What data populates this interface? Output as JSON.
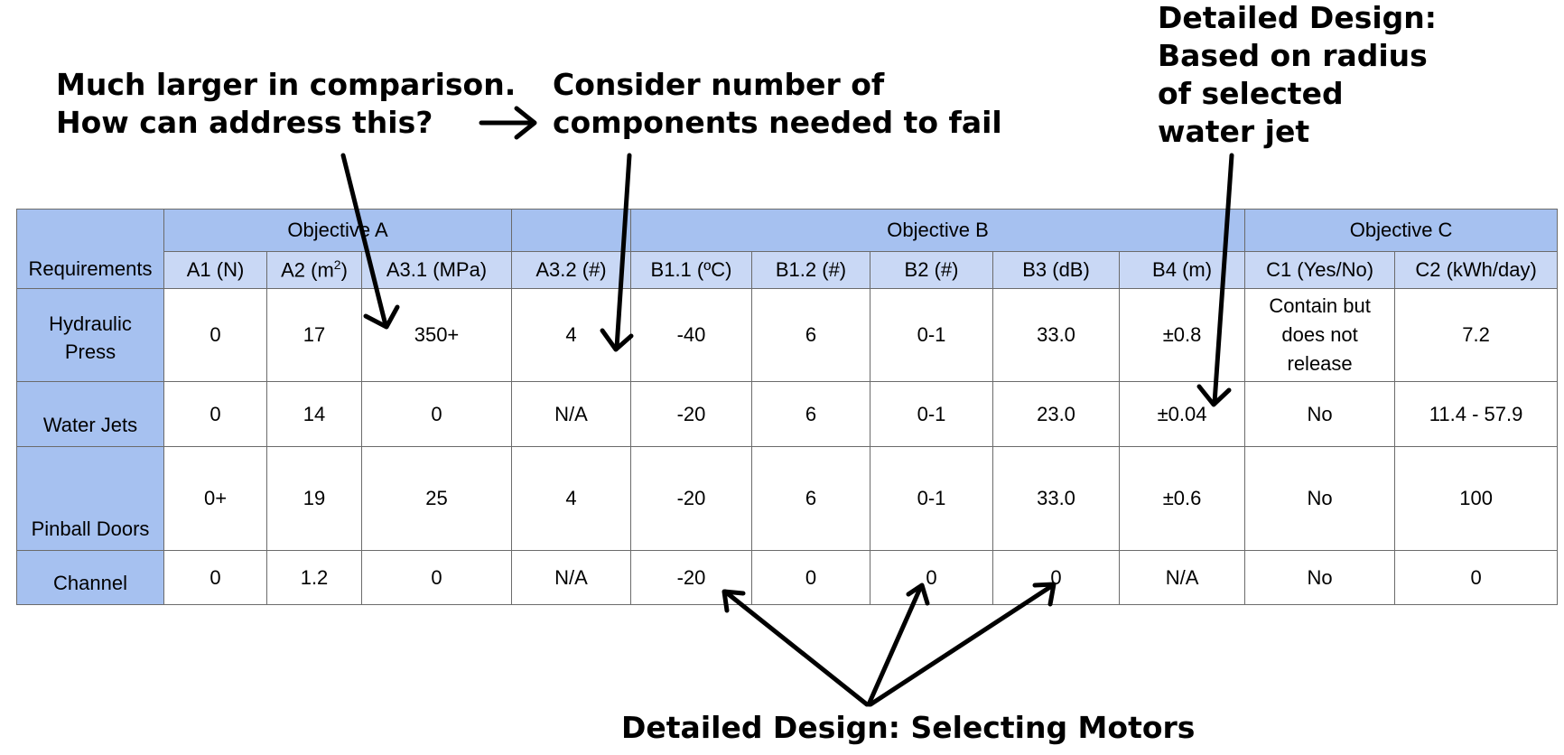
{
  "annotations": {
    "top_left": [
      "Much larger in comparison.",
      "How can address this?"
    ],
    "top_middle": [
      "Consider number of",
      "components needed to fail"
    ],
    "top_right": [
      "Detailed Design:",
      "Based on radius",
      "of selected",
      "water jet"
    ],
    "bottom": "Detailed Design: Selecting Motors"
  },
  "table": {
    "objectives": [
      "Objective A",
      "Objective B",
      "Objective C"
    ],
    "requirements_label": "Requirements",
    "columns": [
      {
        "id": "A1",
        "label": "A1 (N)"
      },
      {
        "id": "A2",
        "label_prefix": "A2 (m",
        "label_sup": "2",
        "label_suffix": ")"
      },
      {
        "id": "A3.1",
        "label": "A3.1 (MPa)"
      },
      {
        "id": "A3.2",
        "label": "A3.2 (#)"
      },
      {
        "id": "B1.1",
        "label": "B1.1 (ºC)"
      },
      {
        "id": "B1.2",
        "label": "B1.2 (#)"
      },
      {
        "id": "B2",
        "label": "B2 (#)"
      },
      {
        "id": "B3",
        "label": "B3 (dB)"
      },
      {
        "id": "B4",
        "label": "B4 (m)"
      },
      {
        "id": "C1",
        "label": "C1 (Yes/No)"
      },
      {
        "id": "C2",
        "label": "C2 (kWh/day)"
      }
    ],
    "rows": [
      {
        "name_lines": [
          "Hydraulic",
          "Press"
        ],
        "cells": [
          "0",
          "17",
          "350+",
          "4",
          "-40",
          "6",
          "0-1",
          "33.0",
          "±0.8",
          "Contain but does not release",
          "7.2"
        ],
        "c1_lines": [
          "Contain but",
          "does not",
          "release"
        ]
      },
      {
        "name": "Water Jets",
        "cells": [
          "0",
          "14",
          "0",
          "N/A",
          "-20",
          "6",
          "0-1",
          "23.0",
          "±0.04",
          "No",
          "11.4 - 57.9"
        ]
      },
      {
        "name": "Pinball Doors",
        "cells": [
          "0+",
          "19",
          "25",
          "4",
          "-20",
          "6",
          "0-1",
          "33.0",
          "±0.6",
          "No",
          "100"
        ]
      },
      {
        "name": "Channel",
        "cells": [
          "0",
          "1.2",
          "0",
          "N/A",
          "-20",
          "0",
          "0",
          "0",
          "N/A",
          "No",
          "0"
        ]
      }
    ]
  },
  "colors": {
    "objective_header": "#a6c1f0",
    "column_header": "#c9d8f5",
    "grid_lines": "#6b6b6b",
    "arrows": "#000000"
  }
}
